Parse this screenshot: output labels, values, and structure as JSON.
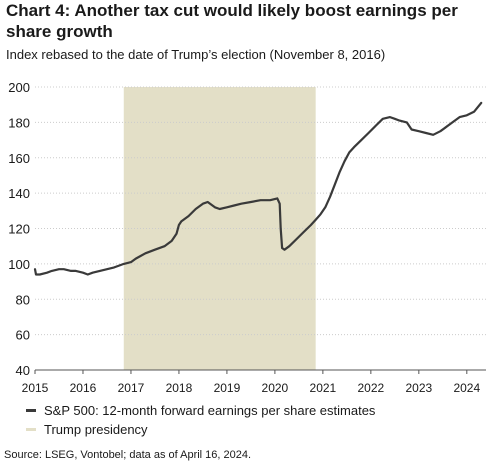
{
  "title": "Chart 4: Another tax cut would likely boost earnings per share growth",
  "subtitle": "Index rebased to the date of Trump’s election (November 8, 2016)",
  "source": "Source: LSEG, Vontobel; data as of April 16, 2024.",
  "colors": {
    "line": "#3a3a3a",
    "band": "#e3dfc7",
    "axis": "#555555",
    "grid": "#cccccc"
  },
  "chart_data": {
    "type": "line",
    "title": "Chart 4: Another tax cut would likely boost earnings per share growth",
    "subtitle": "Index rebased to the date of Trump’s election (November 8, 2016)",
    "xlabel": "",
    "ylabel": "",
    "xlim": [
      2015.0,
      2024.4
    ],
    "ylim": [
      40,
      200
    ],
    "yticks": [
      40,
      60,
      80,
      100,
      120,
      140,
      160,
      180,
      200
    ],
    "xticks": [
      2015,
      2016,
      2017,
      2018,
      2019,
      2020,
      2021,
      2022,
      2023,
      2024
    ],
    "grid": "horizontal",
    "legend": "bottom-left",
    "shaded_regions": [
      {
        "name": "Trump presidency",
        "x_start": 2016.85,
        "x_end": 2020.85
      }
    ],
    "series": [
      {
        "name": "S&P 500: 12-month forward earnings per share estimates",
        "x": [
          2015.0,
          2015.02,
          2015.1,
          2015.25,
          2015.35,
          2015.5,
          2015.6,
          2015.75,
          2015.85,
          2016.0,
          2016.1,
          2016.2,
          2016.35,
          2016.5,
          2016.65,
          2016.75,
          2016.85,
          2017.0,
          2017.1,
          2017.3,
          2017.5,
          2017.7,
          2017.85,
          2017.95,
          2018.0,
          2018.05,
          2018.2,
          2018.35,
          2018.5,
          2018.6,
          2018.7,
          2018.75,
          2018.85,
          2019.0,
          2019.15,
          2019.3,
          2019.5,
          2019.7,
          2019.9,
          2020.05,
          2020.1,
          2020.12,
          2020.15,
          2020.2,
          2020.3,
          2020.45,
          2020.6,
          2020.75,
          2020.85,
          2020.95,
          2021.05,
          2021.15,
          2021.25,
          2021.35,
          2021.45,
          2021.55,
          2021.65,
          2021.8,
          2021.95,
          2022.1,
          2022.25,
          2022.4,
          2022.5,
          2022.6,
          2022.75,
          2022.85,
          2023.0,
          2023.15,
          2023.3,
          2023.45,
          2023.55,
          2023.7,
          2023.85,
          2024.0,
          2024.15,
          2024.3
        ],
        "values": [
          97,
          94,
          94,
          95,
          96,
          97,
          97,
          96,
          96,
          95,
          94,
          95,
          96,
          97,
          98,
          99,
          100,
          101,
          103,
          106,
          108,
          110,
          113,
          117,
          122,
          124,
          127,
          131,
          134,
          135,
          133,
          132,
          131,
          132,
          133,
          134,
          135,
          136,
          136,
          137,
          134,
          120,
          109,
          108,
          110,
          114,
          118,
          122,
          125,
          128,
          132,
          138,
          145,
          152,
          158,
          163,
          166,
          170,
          174,
          178,
          182,
          183,
          182,
          181,
          180,
          176,
          175,
          174,
          173,
          175,
          177,
          180,
          183,
          184,
          186,
          191
        ]
      }
    ]
  },
  "legend_items": [
    {
      "label": "S&P 500: 12-month forward earnings per share estimates"
    },
    {
      "label": "Trump presidency"
    }
  ]
}
